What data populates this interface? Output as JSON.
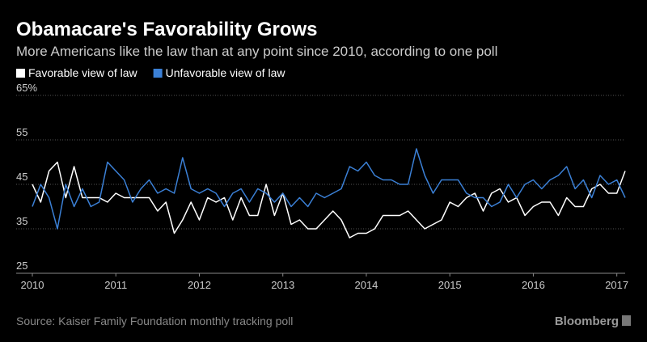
{
  "chart_data": {
    "type": "line",
    "title": "Obamacare's Favorability Grows",
    "subtitle": "More Americans like the law than at any point since 2010, according to one poll",
    "source": "Source: Kaiser Family Foundation monthly tracking poll",
    "brand": "Bloomberg",
    "x": [
      2010.0,
      2010.1,
      2010.2,
      2010.3,
      2010.4,
      2010.5,
      2010.6,
      2010.7,
      2010.8,
      2010.9,
      2011.0,
      2011.1,
      2011.2,
      2011.3,
      2011.4,
      2011.5,
      2011.6,
      2011.7,
      2011.8,
      2011.9,
      2012.0,
      2012.1,
      2012.2,
      2012.3,
      2012.4,
      2012.5,
      2012.6,
      2012.7,
      2012.8,
      2012.9,
      2013.0,
      2013.1,
      2013.2,
      2013.3,
      2013.4,
      2013.5,
      2013.6,
      2013.7,
      2013.8,
      2013.9,
      2014.0,
      2014.1,
      2014.2,
      2014.3,
      2014.4,
      2014.5,
      2014.6,
      2014.7,
      2014.8,
      2014.9,
      2015.0,
      2015.1,
      2015.2,
      2015.3,
      2015.4,
      2015.5,
      2015.6,
      2015.7,
      2015.8,
      2015.9,
      2016.0,
      2016.1,
      2016.2,
      2016.3,
      2016.4,
      2016.5,
      2016.6,
      2016.7,
      2016.8,
      2016.9,
      2017.0,
      2017.1
    ],
    "series": [
      {
        "name": "Favorable view of law",
        "color": "#ffffff",
        "values": [
          45,
          41,
          48,
          50,
          42,
          49,
          42,
          42,
          42,
          41,
          43,
          42,
          42,
          42,
          42,
          39,
          41,
          34,
          37,
          41,
          37,
          42,
          41,
          42,
          37,
          42,
          38,
          38,
          45,
          38,
          43,
          36,
          37,
          35,
          35,
          37,
          39,
          37,
          33,
          34,
          34,
          35,
          38,
          38,
          38,
          39,
          37,
          35,
          36,
          37,
          41,
          40,
          42,
          43,
          39,
          43,
          44,
          41,
          42,
          38,
          40,
          41,
          41,
          38,
          42,
          40,
          40,
          44,
          45,
          43,
          43,
          48
        ]
      },
      {
        "name": "Unfavorable view of law",
        "color": "#3b80d6",
        "values": [
          40,
          45,
          42,
          35,
          45,
          40,
          44,
          40,
          41,
          50,
          48,
          46,
          41,
          44,
          46,
          43,
          44,
          43,
          51,
          44,
          43,
          44,
          43,
          40,
          43,
          44,
          41,
          44,
          43,
          41,
          43,
          40,
          42,
          40,
          43,
          42,
          43,
          44,
          49,
          48,
          50,
          47,
          46,
          46,
          45,
          45,
          53,
          47,
          43,
          46,
          46,
          46,
          43,
          42,
          42,
          40,
          41,
          45,
          42,
          45,
          46,
          44,
          46,
          47,
          49,
          44,
          46,
          42,
          47,
          45,
          46,
          42
        ]
      }
    ],
    "xlim": [
      2010,
      2017.1
    ],
    "xticks": [
      2010,
      2011,
      2012,
      2013,
      2014,
      2015,
      2016,
      2017
    ],
    "ylim": [
      25,
      65
    ],
    "yticks": [
      25,
      35,
      45,
      55,
      {
        "value": 65,
        "label": "65%"
      }
    ],
    "grid": true
  }
}
